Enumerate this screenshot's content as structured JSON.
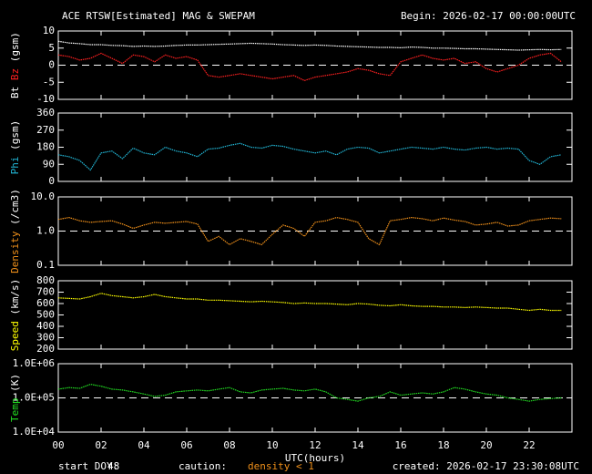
{
  "header": {
    "title": "ACE RTSW[Estimated] MAG & SWEPAM",
    "begin": "Begin: 2026-02-17 00:00:00UTC"
  },
  "footer": {
    "start_doy_label": "start DOY:",
    "start_doy": 48,
    "caution_label": "caution:",
    "caution": "density < 1",
    "created": "created: 2026-02-17 23:30:08UTC"
  },
  "chart_data": [
    {
      "type": "line",
      "unit": "(gsm)",
      "xlim": [
        0,
        24
      ],
      "ylim": [
        -10,
        10
      ],
      "yticks": [
        -10,
        -5,
        0,
        5,
        10
      ],
      "ref_line": 0,
      "x": [
        0,
        0.5,
        1,
        1.5,
        2,
        2.5,
        3,
        3.5,
        4,
        4.5,
        5,
        5.5,
        6,
        6.5,
        7,
        7.5,
        8,
        8.5,
        9,
        9.5,
        10,
        10.5,
        11,
        11.5,
        12,
        12.5,
        13,
        13.5,
        14,
        14.5,
        15,
        15.5,
        16,
        16.5,
        17,
        17.5,
        18,
        18.5,
        19,
        19.5,
        20,
        20.5,
        21,
        21.5,
        22,
        22.5,
        23,
        23.5
      ],
      "series": [
        {
          "name": "Bt",
          "color": "#ffffff",
          "values": [
            7,
            6.5,
            6.3,
            6,
            6,
            5.8,
            5.7,
            5.5,
            5.6,
            5.5,
            5.6,
            5.8,
            5.9,
            5.9,
            6,
            6.1,
            6.2,
            6.3,
            6.4,
            6.3,
            6.2,
            6,
            5.9,
            5.8,
            5.9,
            5.8,
            5.6,
            5.5,
            5.4,
            5.3,
            5.2,
            5.2,
            5.1,
            5.3,
            5.2,
            5,
            5,
            4.9,
            4.8,
            4.8,
            4.7,
            4.6,
            4.5,
            4.4,
            4.5,
            4.6,
            4.5,
            4.6
          ]
        },
        {
          "name": "Bz",
          "color": "#ff2020",
          "values": [
            3,
            2.5,
            1.5,
            2,
            3.5,
            2,
            0.5,
            3,
            2.5,
            1,
            3,
            2,
            2.5,
            1.5,
            -3,
            -3.5,
            -3,
            -2.5,
            -3,
            -3.5,
            -4,
            -3.5,
            -3,
            -4.5,
            -3.5,
            -3,
            -2.5,
            -2,
            -1,
            -1.5,
            -2.5,
            -3,
            1,
            2,
            3,
            2,
            1.5,
            2,
            0.5,
            1,
            -1,
            -2,
            -1,
            0,
            2,
            3,
            3.5,
            1
          ]
        }
      ]
    },
    {
      "type": "line",
      "unit": "(gsm)",
      "xlim": [
        0,
        24
      ],
      "ylim": [
        0,
        360
      ],
      "yticks": [
        0,
        90,
        180,
        270,
        360
      ],
      "series": [
        {
          "name": "Phi",
          "color": "#22b8d8",
          "values": [
            140,
            130,
            110,
            60,
            150,
            160,
            120,
            175,
            150,
            140,
            180,
            160,
            150,
            130,
            170,
            175,
            190,
            200,
            180,
            175,
            190,
            185,
            170,
            160,
            150,
            160,
            140,
            170,
            180,
            175,
            150,
            160,
            170,
            180,
            175,
            170,
            180,
            170,
            165,
            175,
            180,
            170,
            175,
            170,
            110,
            90,
            130,
            140
          ]
        }
      ]
    },
    {
      "type": "line",
      "unit": "(/cm3)",
      "log": true,
      "xlim": [
        0,
        24
      ],
      "ylim": [
        0.1,
        10
      ],
      "yticks": [
        0.1,
        {
          "value": 1,
          "label": "1.0"
        },
        {
          "value": 10,
          "label": "10.0"
        }
      ],
      "ref_line": 1,
      "series": [
        {
          "name": "Density",
          "color": "#f0901a",
          "values": [
            2.2,
            2.5,
            2,
            1.8,
            1.9,
            2,
            1.6,
            1.2,
            1.5,
            1.8,
            1.7,
            1.8,
            1.9,
            1.6,
            0.5,
            0.7,
            0.4,
            0.6,
            0.5,
            0.4,
            0.8,
            1.5,
            1.2,
            0.7,
            1.8,
            2,
            2.5,
            2.2,
            1.8,
            0.6,
            0.4,
            2,
            2.2,
            2.5,
            2.3,
            2,
            2.4,
            2.1,
            1.9,
            1.5,
            1.6,
            1.8,
            1.4,
            1.5,
            2,
            2.2,
            2.4,
            2.3
          ]
        }
      ]
    },
    {
      "type": "line",
      "unit": "(km/s)",
      "xlim": [
        0,
        24
      ],
      "ylim": [
        200,
        800
      ],
      "yticks": [
        200,
        300,
        400,
        500,
        600,
        700,
        800
      ],
      "series": [
        {
          "name": "Speed",
          "color": "#ffff00",
          "values": [
            650,
            645,
            640,
            660,
            690,
            670,
            660,
            650,
            660,
            680,
            660,
            650,
            640,
            640,
            630,
            630,
            625,
            620,
            615,
            620,
            615,
            610,
            600,
            605,
            600,
            600,
            595,
            590,
            600,
            595,
            585,
            580,
            590,
            580,
            575,
            575,
            570,
            570,
            565,
            570,
            565,
            560,
            560,
            550,
            540,
            550,
            540,
            540
          ]
        }
      ]
    },
    {
      "type": "line",
      "unit": "(K)",
      "log": true,
      "xlim": [
        0,
        24
      ],
      "ylim": [
        10000,
        1000000
      ],
      "yticks": [
        {
          "value": 10000,
          "label": "1.0E+04"
        },
        {
          "value": 100000,
          "label": "1.0E+05"
        },
        {
          "value": 1000000,
          "label": "1.0E+06"
        }
      ],
      "ref_line": 100000,
      "xlabel": "UTC(hours)",
      "xticks": [
        {
          "value": 0,
          "label": "00"
        },
        {
          "value": 2,
          "label": "02"
        },
        {
          "value": 4,
          "label": "04"
        },
        {
          "value": 6,
          "label": "06"
        },
        {
          "value": 8,
          "label": "08"
        },
        10,
        12,
        14,
        16,
        18,
        20,
        22
      ],
      "series": [
        {
          "name": "Temp",
          "color": "#22dd22",
          "values": [
            180000,
            200000,
            190000,
            250000,
            220000,
            180000,
            170000,
            150000,
            130000,
            110000,
            120000,
            150000,
            160000,
            170000,
            160000,
            180000,
            200000,
            150000,
            140000,
            170000,
            180000,
            190000,
            170000,
            160000,
            180000,
            150000,
            100000,
            90000,
            80000,
            100000,
            110000,
            150000,
            120000,
            130000,
            140000,
            130000,
            150000,
            200000,
            180000,
            150000,
            130000,
            120000,
            100000,
            90000,
            80000,
            90000,
            95000,
            100000
          ]
        }
      ]
    }
  ]
}
